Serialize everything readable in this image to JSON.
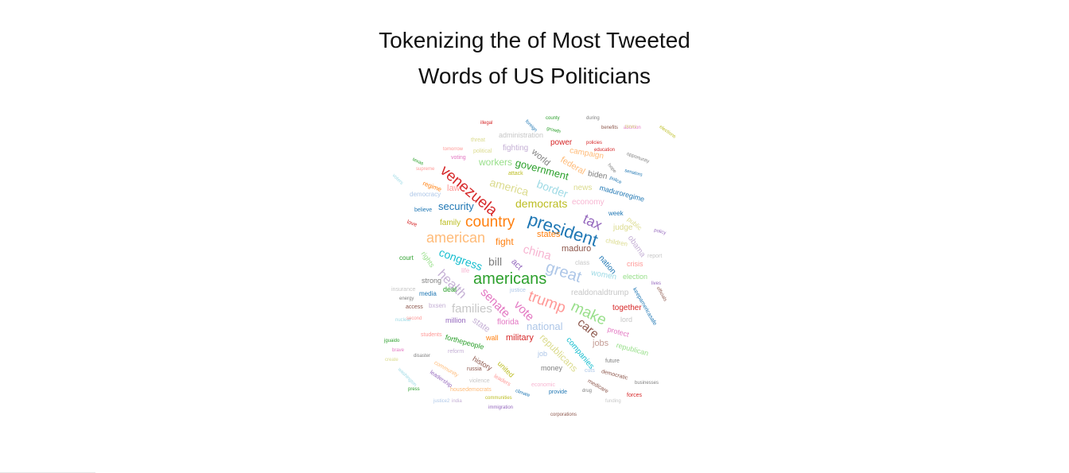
{
  "title": {
    "line1": "Tokenizing the of Most Tweeted",
    "line2": "Words of US Politicians"
  },
  "words": [
    {
      "text": "venezuela",
      "color": "#d62728"
    },
    {
      "text": "president",
      "color": "#1f77b4"
    },
    {
      "text": "country",
      "color": "#ff7f0e"
    },
    {
      "text": "american",
      "color": "#ffbb78"
    },
    {
      "text": "americans",
      "color": "#2ca02c"
    },
    {
      "text": "great",
      "color": "#aec7e8"
    },
    {
      "text": "make",
      "color": "#98df8a"
    },
    {
      "text": "trump",
      "color": "#ff9896"
    },
    {
      "text": "health",
      "color": "#c5b0d5"
    },
    {
      "text": "democrats",
      "color": "#bcbd22"
    },
    {
      "text": "tax",
      "color": "#9467bd"
    },
    {
      "text": "security",
      "color": "#1f77b4"
    },
    {
      "text": "families",
      "color": "#c7c7c7"
    },
    {
      "text": "senate",
      "color": "#e377c2"
    },
    {
      "text": "china",
      "color": "#f7b6d2"
    },
    {
      "text": "vote",
      "color": "#e377c2"
    },
    {
      "text": "congress",
      "color": "#17becf"
    },
    {
      "text": "care",
      "color": "#8c564b"
    },
    {
      "text": "america",
      "color": "#dbdb8d"
    },
    {
      "text": "border",
      "color": "#9edae5"
    },
    {
      "text": "government",
      "color": "#2ca02c"
    },
    {
      "text": "bill",
      "color": "#7f7f7f"
    },
    {
      "text": "fight",
      "color": "#ff7f0e"
    },
    {
      "text": "national",
      "color": "#aec7e8"
    },
    {
      "text": "republicans",
      "color": "#dbdb8d"
    },
    {
      "text": "workers",
      "color": "#98df8a"
    },
    {
      "text": "law",
      "color": "#ff9896"
    },
    {
      "text": "maduro",
      "color": "#8c564b"
    },
    {
      "text": "military",
      "color": "#d62728"
    },
    {
      "text": "companies",
      "color": "#17becf"
    },
    {
      "text": "jobs",
      "color": "#c49c94"
    },
    {
      "text": "states",
      "color": "#ff7f0e"
    },
    {
      "text": "family",
      "color": "#bcbd22"
    },
    {
      "text": "realdonaldtrump",
      "color": "#c7c7c7"
    },
    {
      "text": "together",
      "color": "#d62728"
    },
    {
      "text": "state",
      "color": "#c5b0d5"
    },
    {
      "text": "florida",
      "color": "#e377c2"
    },
    {
      "text": "world",
      "color": "#7f7f7f"
    },
    {
      "text": "federal",
      "color": "#ffbb78"
    },
    {
      "text": "news",
      "color": "#dbdb8d"
    },
    {
      "text": "economy",
      "color": "#f7b6d2"
    },
    {
      "text": "nation",
      "color": "#1f77b4"
    },
    {
      "text": "women",
      "color": "#9edae5"
    },
    {
      "text": "obama",
      "color": "#c5b0d5"
    },
    {
      "text": "judge",
      "color": "#dbdb8d"
    },
    {
      "text": "biden",
      "color": "#7f7f7f"
    },
    {
      "text": "campaign",
      "color": "#ffbb78"
    },
    {
      "text": "power",
      "color": "#d62728"
    },
    {
      "text": "fighting",
      "color": "#c5b0d5"
    },
    {
      "text": "administration",
      "color": "#c7c7c7"
    },
    {
      "text": "maduroregime",
      "color": "#1f77b4"
    },
    {
      "text": "week",
      "color": "#1f77b4"
    },
    {
      "text": "strong",
      "color": "#7f7f7f"
    },
    {
      "text": "million",
      "color": "#9467bd"
    },
    {
      "text": "history",
      "color": "#8c564b"
    },
    {
      "text": "united",
      "color": "#bcbd22"
    },
    {
      "text": "money",
      "color": "#7f7f7f"
    },
    {
      "text": "job",
      "color": "#aec7e8"
    },
    {
      "text": "wall",
      "color": "#ff7f0e"
    },
    {
      "text": "protect",
      "color": "#e377c2"
    },
    {
      "text": "lord",
      "color": "#c7c7c7"
    },
    {
      "text": "republican",
      "color": "#98df8a"
    },
    {
      "text": "election",
      "color": "#98df8a"
    },
    {
      "text": "crisis",
      "color": "#ff9896"
    },
    {
      "text": "class",
      "color": "#c7c7c7"
    },
    {
      "text": "act",
      "color": "#9467bd"
    },
    {
      "text": "media",
      "color": "#1f77b4"
    },
    {
      "text": "deal",
      "color": "#2ca02c"
    },
    {
      "text": "life",
      "color": "#f7b6d2"
    },
    {
      "text": "rights",
      "color": "#98df8a"
    },
    {
      "text": "court",
      "color": "#2ca02c"
    },
    {
      "text": "forthepeople",
      "color": "#2ca02c"
    },
    {
      "text": "democracy",
      "color": "#aec7e8"
    },
    {
      "text": "regime",
      "color": "#ff7f0e"
    },
    {
      "text": "believe",
      "color": "#1f77b4"
    },
    {
      "text": "love",
      "color": "#d62728"
    },
    {
      "text": "keepamericasafe",
      "color": "#1f77b4"
    },
    {
      "text": "children",
      "color": "#dbdb8d"
    },
    {
      "text": "public",
      "color": "#dbdb8d"
    },
    {
      "text": "future",
      "color": "#7f7f7f"
    },
    {
      "text": "democratic",
      "color": "#8c564b"
    },
    {
      "text": "provide",
      "color": "#1f77b4"
    },
    {
      "text": "economic",
      "color": "#f7b6d2"
    },
    {
      "text": "russia",
      "color": "#8c564b"
    },
    {
      "text": "justice",
      "color": "#aec7e8"
    },
    {
      "text": "insurance",
      "color": "#c7c7c7"
    },
    {
      "text": "access",
      "color": "#8c564b"
    },
    {
      "text": "bxsen",
      "color": "#c5b0d5"
    },
    {
      "text": "energy",
      "color": "#7f7f7f"
    },
    {
      "text": "education",
      "color": "#d62728"
    },
    {
      "text": "policies",
      "color": "#d62728"
    },
    {
      "text": "opportunity",
      "color": "#7f7f7f"
    },
    {
      "text": "benefits",
      "color": "#8c564b"
    },
    {
      "text": "abortion",
      "color": "#e377c2"
    },
    {
      "text": "threat",
      "color": "#dbdb8d"
    },
    {
      "text": "political",
      "color": "#dbdb8d"
    },
    {
      "text": "attack",
      "color": "#bcbd22"
    },
    {
      "text": "report",
      "color": "#c7c7c7"
    },
    {
      "text": "leaders",
      "color": "#ff9896"
    },
    {
      "text": "violence",
      "color": "#c7c7c7"
    },
    {
      "text": "community",
      "color": "#ffbb78"
    },
    {
      "text": "reform",
      "color": "#c5b0d5"
    },
    {
      "text": "housedemocrats",
      "color": "#ffbb78"
    },
    {
      "text": "communities",
      "color": "#bcbd22"
    },
    {
      "text": "immigration",
      "color": "#9467bd"
    },
    {
      "text": "climate",
      "color": "#1f77b4"
    },
    {
      "text": "corporations",
      "color": "#8c564b"
    },
    {
      "text": "businesses",
      "color": "#7f7f7f"
    },
    {
      "text": "forces",
      "color": "#d62728"
    },
    {
      "text": "funding",
      "color": "#c7c7c7"
    },
    {
      "text": "medicare",
      "color": "#8c564b"
    },
    {
      "text": "drug",
      "color": "#7f7f7f"
    },
    {
      "text": "cuts",
      "color": "#aec7e8"
    },
    {
      "text": "lives",
      "color": "#9467bd"
    },
    {
      "text": "officials",
      "color": "#8c564b"
    },
    {
      "text": "policy",
      "color": "#9467bd"
    },
    {
      "text": "police",
      "color": "#1f77b4"
    },
    {
      "text": "hope",
      "color": "#7f7f7f"
    },
    {
      "text": "senators",
      "color": "#1f77b4"
    },
    {
      "text": "foreign",
      "color": "#1f77b4"
    },
    {
      "text": "growth",
      "color": "#2ca02c"
    },
    {
      "text": "county",
      "color": "#2ca02c"
    },
    {
      "text": "during",
      "color": "#7f7f7f"
    },
    {
      "text": "texas",
      "color": "#2ca02c"
    },
    {
      "text": "voting",
      "color": "#e377c2"
    },
    {
      "text": "supreme",
      "color": "#ff9896"
    },
    {
      "text": "tomorrow",
      "color": "#ff9896"
    },
    {
      "text": "illegal",
      "color": "#d62728"
    },
    {
      "text": "voters",
      "color": "#9edae5"
    },
    {
      "text": "times",
      "color": "#dbdb8d"
    },
    {
      "text": "elections",
      "color": "#bcbd22"
    },
    {
      "text": "press",
      "color": "#2ca02c"
    },
    {
      "text": "leadership",
      "color": "#9467bd"
    },
    {
      "text": "washington",
      "color": "#9edae5"
    },
    {
      "text": "jguaido",
      "color": "#2ca02c"
    },
    {
      "text": "students",
      "color": "#ff9896"
    },
    {
      "text": "nuclear",
      "color": "#9edae5"
    },
    {
      "text": "second",
      "color": "#ff9896"
    },
    {
      "text": "disaster",
      "color": "#7f7f7f"
    },
    {
      "text": "brave",
      "color": "#e377c2"
    },
    {
      "text": "create",
      "color": "#dbdb8d"
    },
    {
      "text": "india",
      "color": "#c5b0d5"
    },
    {
      "text": "justice2",
      "color": "#aec7e8"
    }
  ],
  "colors": {
    "title": "#111111",
    "background": "#ffffff"
  }
}
